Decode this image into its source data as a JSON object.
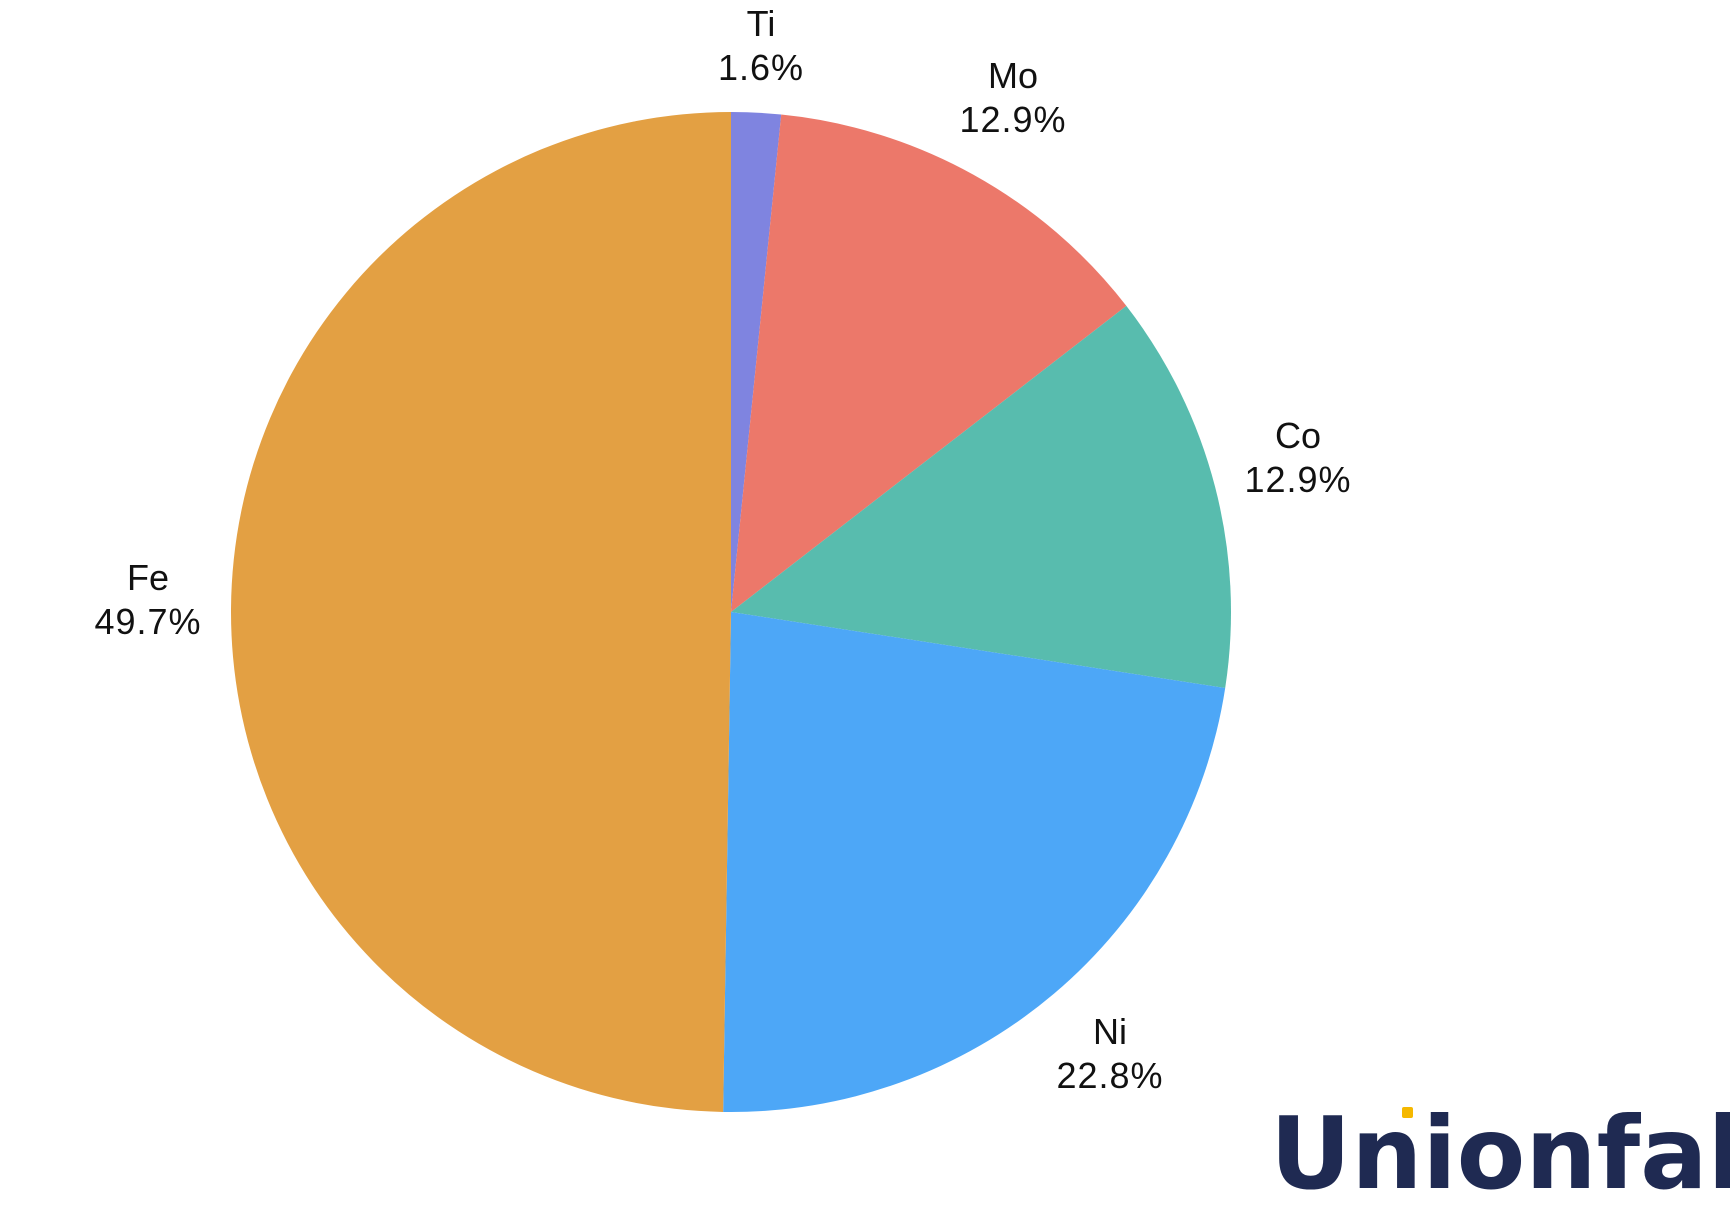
{
  "chart_data": {
    "type": "pie",
    "title": "",
    "slices": [
      {
        "label": "Ti",
        "value": 1.6,
        "value_label": "1.6%",
        "color": "#7f84e0"
      },
      {
        "label": "Mo",
        "value": 12.9,
        "value_label": "12.9%",
        "color": "#ec786a"
      },
      {
        "label": "Co",
        "value": 12.9,
        "value_label": "12.9%",
        "color": "#58bcae"
      },
      {
        "label": "Ni",
        "value": 22.8,
        "value_label": "22.8%",
        "color": "#4da7f7"
      },
      {
        "label": "Fe",
        "value": 49.7,
        "value_label": "49.7%",
        "color": "#e3a043"
      }
    ],
    "start_angle": "top",
    "direction": "clockwise",
    "legend": "none"
  },
  "brand": {
    "logo_text": "Unionfab",
    "logo_color": "#1f2a52",
    "accent_color": "#f5b800"
  }
}
